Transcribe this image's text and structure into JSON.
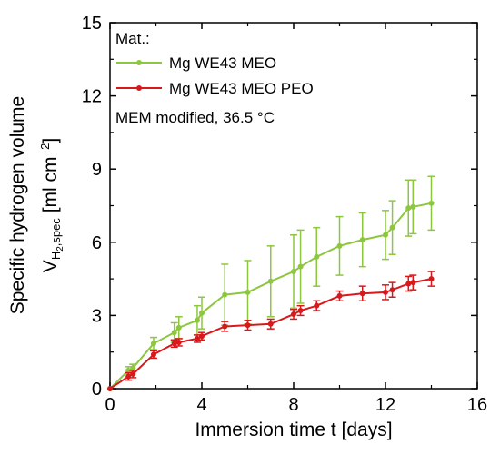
{
  "chart_data": {
    "type": "line",
    "xlabel": "Immersion time t [days]",
    "ylabel_line1": "Specific hydrogen volume",
    "ylabel_v": "V",
    "ylabel_sub_h": "H",
    "ylabel_sub_2": "2",
    "ylabel_sub_spec": ",spec",
    "ylabel_units": " [ml cm",
    "ylabel_units_exp": "−2",
    "ylabel_units_close": "]",
    "xlim": [
      0,
      16
    ],
    "ylim": [
      0,
      15
    ],
    "xticks": [
      0,
      4,
      8,
      12,
      16
    ],
    "yticks": [
      0,
      3,
      6,
      9,
      12,
      15
    ],
    "legend": {
      "placement": "top-left",
      "header": "Mat.:",
      "note": "MEM modified, 36.5 °C"
    },
    "series": [
      {
        "name": "Mg WE43 MEO",
        "color": "#8dc63f",
        "points": [
          {
            "x": 0,
            "y": 0,
            "err": 0
          },
          {
            "x": 0.8,
            "y": 0.75,
            "err": 0.15
          },
          {
            "x": 1,
            "y": 0.85,
            "err": 0.15
          },
          {
            "x": 1.9,
            "y": 1.85,
            "err": 0.25
          },
          {
            "x": 2.8,
            "y": 2.3,
            "err": 0.4
          },
          {
            "x": 3,
            "y": 2.5,
            "err": 0.45
          },
          {
            "x": 3.8,
            "y": 2.8,
            "err": 0.6
          },
          {
            "x": 4,
            "y": 3.1,
            "err": 0.65
          },
          {
            "x": 5,
            "y": 3.85,
            "err": 1.25
          },
          {
            "x": 6,
            "y": 3.95,
            "err": 1.3
          },
          {
            "x": 7,
            "y": 4.4,
            "err": 1.45
          },
          {
            "x": 8,
            "y": 4.8,
            "err": 1.5
          },
          {
            "x": 8.3,
            "y": 5.0,
            "err": 1.5
          },
          {
            "x": 9,
            "y": 5.4,
            "err": 1.2
          },
          {
            "x": 10,
            "y": 5.85,
            "err": 1.2
          },
          {
            "x": 11,
            "y": 6.1,
            "err": 1.1
          },
          {
            "x": 12,
            "y": 6.3,
            "err": 1.0
          },
          {
            "x": 12.3,
            "y": 6.6,
            "err": 1.1
          },
          {
            "x": 13,
            "y": 7.4,
            "err": 1.15
          },
          {
            "x": 13.2,
            "y": 7.45,
            "err": 1.1
          },
          {
            "x": 14,
            "y": 7.6,
            "err": 1.1
          }
        ]
      },
      {
        "name": "Mg WE43 MEO PEO",
        "color": "#d7191c",
        "points": [
          {
            "x": 0,
            "y": 0,
            "err": 0
          },
          {
            "x": 0.8,
            "y": 0.5,
            "err": 0.15
          },
          {
            "x": 1,
            "y": 0.6,
            "err": 0.15
          },
          {
            "x": 1.9,
            "y": 1.4,
            "err": 0.15
          },
          {
            "x": 2.8,
            "y": 1.85,
            "err": 0.15
          },
          {
            "x": 3,
            "y": 1.9,
            "err": 0.15
          },
          {
            "x": 3.8,
            "y": 2.05,
            "err": 0.15
          },
          {
            "x": 4,
            "y": 2.15,
            "err": 0.15
          },
          {
            "x": 5,
            "y": 2.55,
            "err": 0.2
          },
          {
            "x": 6,
            "y": 2.6,
            "err": 0.2
          },
          {
            "x": 7,
            "y": 2.65,
            "err": 0.2
          },
          {
            "x": 8,
            "y": 3.05,
            "err": 0.2
          },
          {
            "x": 8.3,
            "y": 3.2,
            "err": 0.2
          },
          {
            "x": 9,
            "y": 3.4,
            "err": 0.2
          },
          {
            "x": 10,
            "y": 3.8,
            "err": 0.2
          },
          {
            "x": 11,
            "y": 3.9,
            "err": 0.3
          },
          {
            "x": 12,
            "y": 3.95,
            "err": 0.3
          },
          {
            "x": 12.3,
            "y": 4.05,
            "err": 0.3
          },
          {
            "x": 13,
            "y": 4.3,
            "err": 0.3
          },
          {
            "x": 13.2,
            "y": 4.35,
            "err": 0.3
          },
          {
            "x": 14,
            "y": 4.5,
            "err": 0.3
          }
        ]
      }
    ]
  }
}
